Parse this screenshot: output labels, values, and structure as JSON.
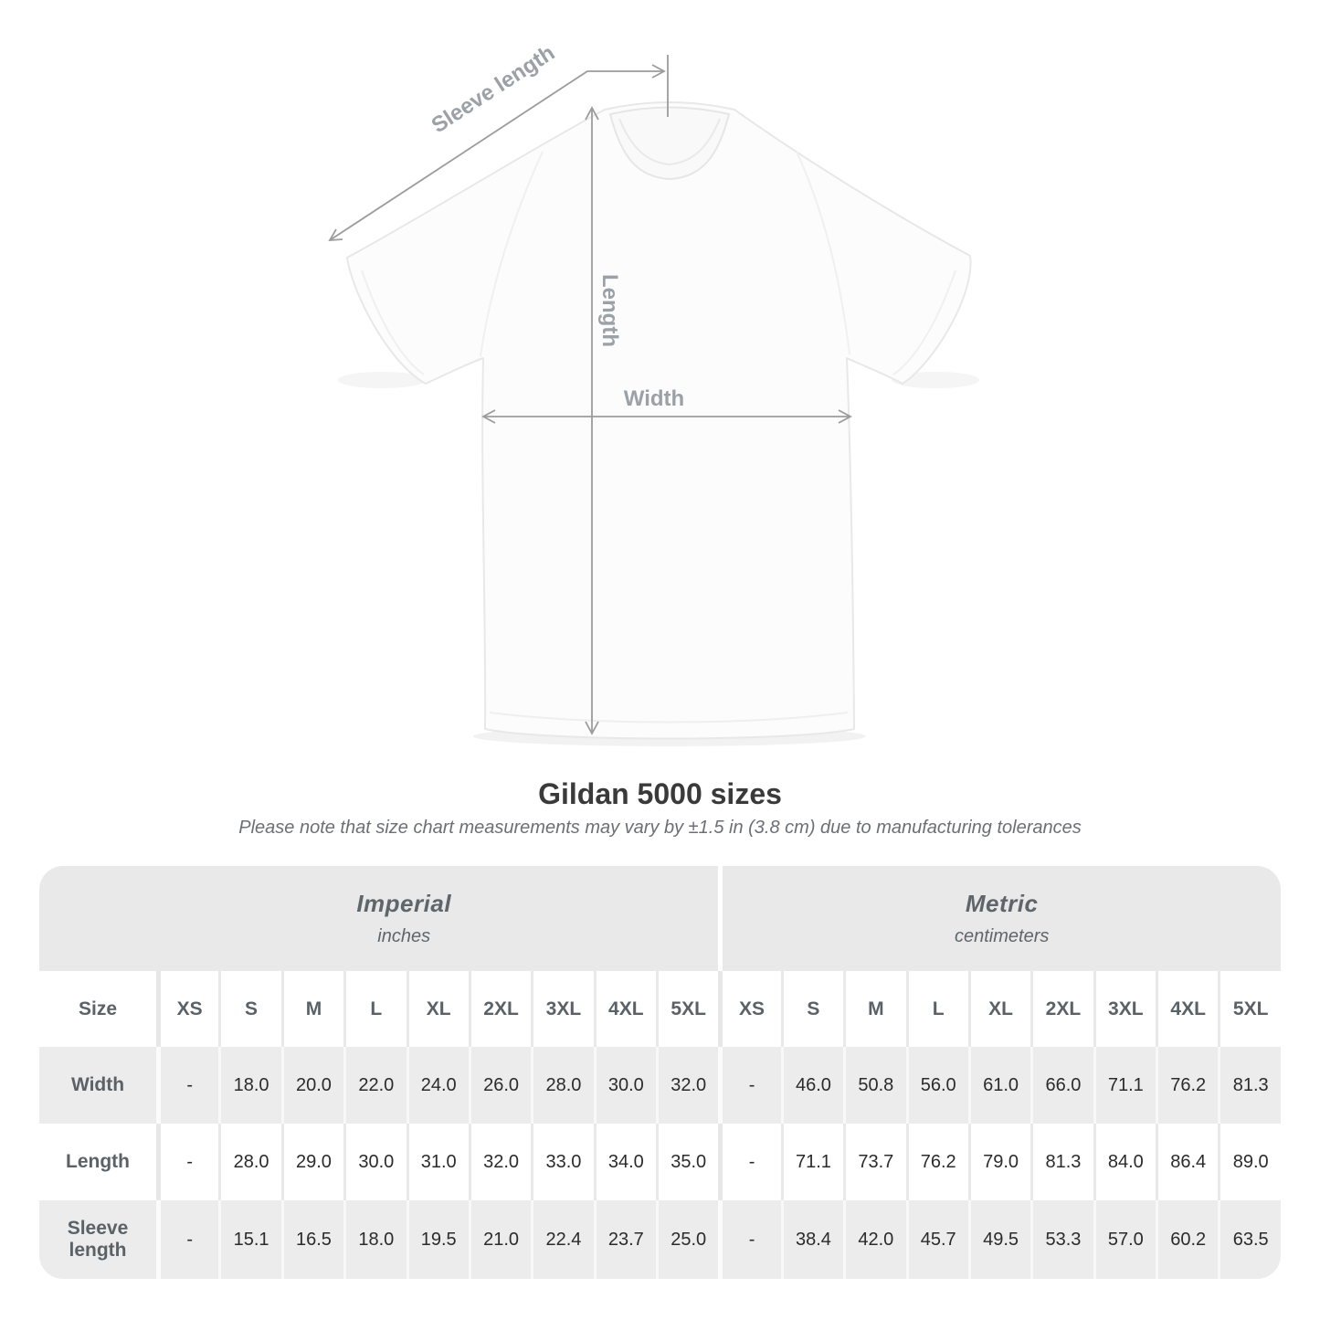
{
  "diagram": {
    "labels": {
      "sleeve_length": "Sleeve length",
      "length": "Length",
      "width": "Width"
    },
    "arrow_color": "#9c9c9c",
    "label_color": "#9ba1a7"
  },
  "title": "Gildan 5000 sizes",
  "subtitle": "Please note that size chart measurements may vary by ±1.5 in (3.8 cm) due to manufacturing tolerances",
  "table": {
    "unit_groups": [
      {
        "name": "Imperial",
        "unit": "inches"
      },
      {
        "name": "Metric",
        "unit": "centimeters"
      }
    ],
    "size_label": "Size",
    "sizes": [
      "XS",
      "S",
      "M",
      "L",
      "XL",
      "2XL",
      "3XL",
      "4XL",
      "5XL"
    ],
    "rows": [
      {
        "label": "Width",
        "imperial": [
          "-",
          "18.0",
          "20.0",
          "22.0",
          "24.0",
          "26.0",
          "28.0",
          "30.0",
          "32.0"
        ],
        "metric": [
          "-",
          "46.0",
          "50.8",
          "56.0",
          "61.0",
          "66.0",
          "71.1",
          "76.2",
          "81.3"
        ]
      },
      {
        "label": "Length",
        "imperial": [
          "-",
          "28.0",
          "29.0",
          "30.0",
          "31.0",
          "32.0",
          "33.0",
          "34.0",
          "35.0"
        ],
        "metric": [
          "-",
          "71.1",
          "73.7",
          "76.2",
          "79.0",
          "81.3",
          "84.0",
          "86.4",
          "89.0"
        ]
      },
      {
        "label": "Sleeve length",
        "imperial": [
          "-",
          "15.1",
          "16.5",
          "18.0",
          "19.5",
          "21.0",
          "22.4",
          "23.7",
          "25.0"
        ],
        "metric": [
          "-",
          "38.4",
          "42.0",
          "45.7",
          "49.5",
          "53.3",
          "57.0",
          "60.2",
          "63.5"
        ]
      }
    ]
  }
}
